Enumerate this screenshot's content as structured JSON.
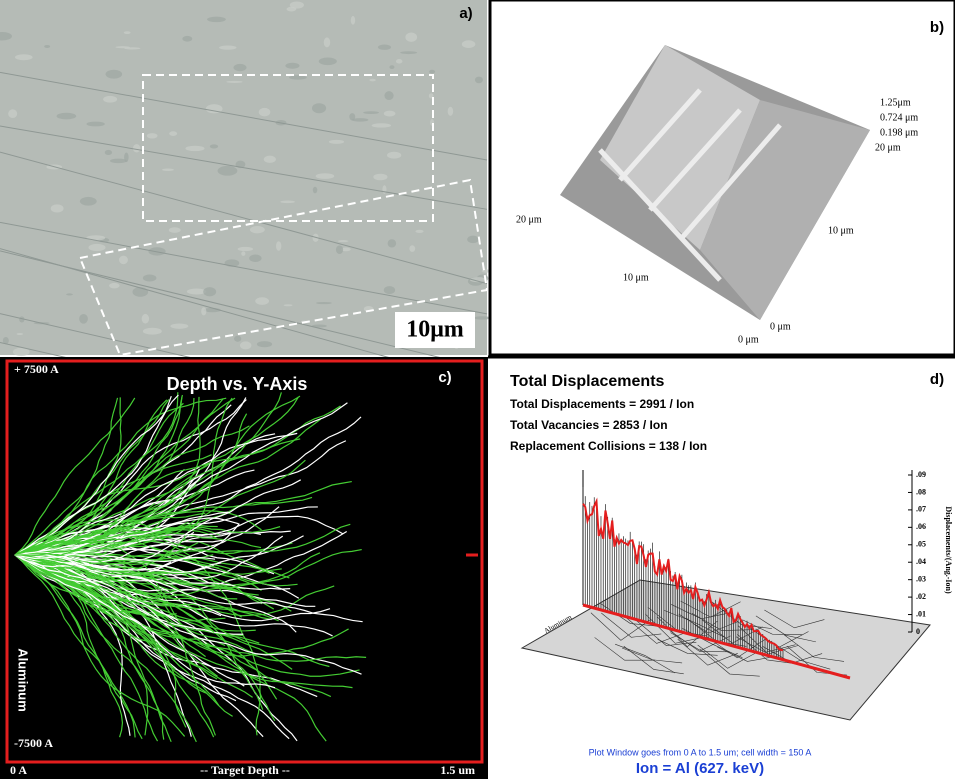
{
  "panel_a": {
    "label": "a)",
    "scale_bar": "10μm"
  },
  "panel_b": {
    "label": "b)",
    "z_labels": [
      "1.25μm",
      "0.724 μm",
      "0.198 μm"
    ],
    "right_axis": [
      "20 μm",
      "10 μm",
      "0 μm"
    ],
    "left_axis": [
      "20 μm",
      "10 μm",
      "0 μm"
    ]
  },
  "panel_c": {
    "label": "c)",
    "title": "Depth vs. Y-Axis",
    "top_label": "+ 7500 A",
    "bottom_label": "-7500 A",
    "side_label": "Aluminum",
    "x_start": "0 A",
    "x_title": "-- Target Depth --",
    "x_end": "1.5 um"
  },
  "panel_d": {
    "label": "d)",
    "title": "Total Displacements",
    "stats": [
      "Total Displacements = 2991 / Ion",
      "Total Vacancies = 2853 / Ion",
      "Replacement Collisions = 138 / Ion"
    ],
    "axis_ticks": [
      ".09",
      ".08",
      ".07",
      ".06",
      ".05",
      ".04",
      ".03",
      ".02",
      ".01",
      "0"
    ],
    "axis_title": "Displacements/(Ang.-Ion)",
    "floor_label": "Aluminum",
    "window_note": "Plot Window goes from 0 A to 1.5 um;  cell width = 150 A",
    "ion": "Ion = Al (627. keV)"
  }
}
